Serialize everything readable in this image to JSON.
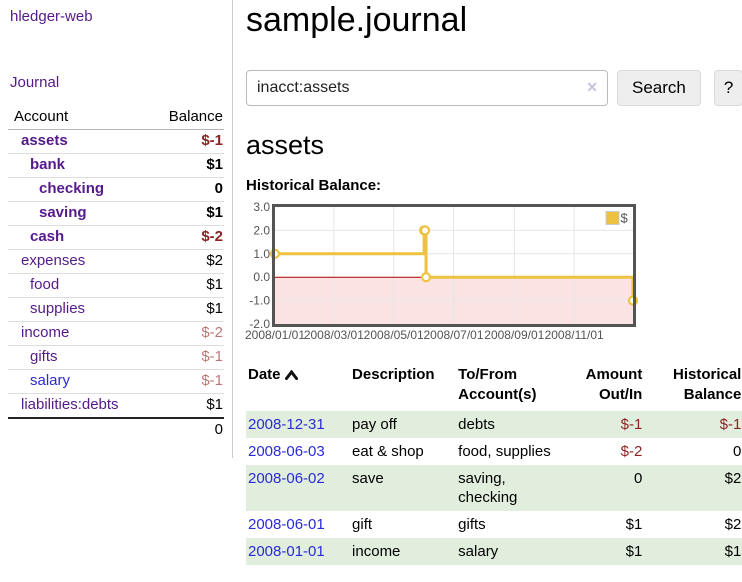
{
  "colors": {
    "purple": "#551a8b",
    "blue": "#2a2ad6",
    "negative": "#8b2323",
    "negative_dim": "#bb7777",
    "row_green": "#e1eedd",
    "series_yellow": "#edc240"
  },
  "sidebar": {
    "app_title": "hledger-web",
    "journal_label": "Journal",
    "accounts_table": {
      "headers": {
        "account": "Account",
        "balance": "Balance"
      },
      "rows": [
        {
          "name": "assets",
          "depth": 1,
          "matched": true,
          "balance": "$-1",
          "balance_class": "neg"
        },
        {
          "name": "bank",
          "depth": 2,
          "matched": true,
          "balance": "$1",
          "balance_class": "pos"
        },
        {
          "name": "checking",
          "depth": 3,
          "matched": true,
          "balance": "0",
          "balance_class": "pos"
        },
        {
          "name": "saving",
          "depth": 3,
          "matched": true,
          "balance": "$1",
          "balance_class": "pos"
        },
        {
          "name": "cash",
          "depth": 2,
          "matched": true,
          "balance": "$-2",
          "balance_class": "neg"
        },
        {
          "name": "expenses",
          "depth": 1,
          "matched": false,
          "balance": "$2",
          "balance_class": "pos"
        },
        {
          "name": "food",
          "depth": 2,
          "matched": false,
          "balance": "$1",
          "balance_class": "pos"
        },
        {
          "name": "supplies",
          "depth": 2,
          "matched": false,
          "balance": "$1",
          "balance_class": "pos"
        },
        {
          "name": "income",
          "depth": 1,
          "matched": false,
          "balance": "$-2",
          "balance_class": "neg-dim"
        },
        {
          "name": "gifts",
          "depth": 2,
          "matched": false,
          "balance": "$-1",
          "balance_class": "neg-dim"
        },
        {
          "name": "salary",
          "depth": 2,
          "matched": false,
          "link": "blue",
          "balance": "$-1",
          "balance_class": "neg-dim"
        },
        {
          "name": "liabilities:debts",
          "depth": 1,
          "matched": false,
          "balance": "$1",
          "balance_class": "pos"
        }
      ],
      "total": "0"
    }
  },
  "main": {
    "title": "sample.journal",
    "search": {
      "value": "inacct:assets",
      "clear_icon": "✕",
      "button_label": "Search",
      "help_label": "?"
    },
    "account_heading": "assets",
    "chart_label": "Historical Balance:"
  },
  "chart_data": {
    "type": "line",
    "step": true,
    "title": "Historical Balance",
    "series": [
      {
        "name": "$",
        "color": "#edc240",
        "points": [
          [
            "2008-01-01",
            1
          ],
          [
            "2008-06-01",
            2
          ],
          [
            "2008-06-02",
            2
          ],
          [
            "2008-06-03",
            0
          ],
          [
            "2008-12-31",
            -1
          ]
        ]
      }
    ],
    "x_range": [
      "2008-01-01",
      "2008-12-31"
    ],
    "x_ticks": [
      "2008/01/01",
      "2008/03/01",
      "2008/05/01",
      "2008/07/01",
      "2008/09/01",
      "2008/11/01"
    ],
    "y_ticks": [
      3,
      2,
      1,
      0,
      -1,
      -2
    ],
    "ylim": [
      -2,
      3
    ],
    "legend_label": "$",
    "legend_position": "top-right",
    "grid": true,
    "grid_color": "#e6e6e6",
    "border_color": "#545454",
    "zero_line_color": "#aa0000",
    "negative_region_color": "#fbe3e3"
  },
  "register": {
    "headers": {
      "date": "Date",
      "description": "Description",
      "accounts": "To/From Account(s)",
      "amount": "Amount Out/In",
      "balance": "Historical Balance"
    },
    "rows": [
      {
        "date": "2008-12-31",
        "description": "pay off",
        "accounts": "debts",
        "amount": "$-1",
        "amount_negative": true,
        "balance": "$-1",
        "balance_negative": true
      },
      {
        "date": "2008-06-03",
        "description": "eat & shop",
        "accounts": "food, supplies",
        "amount": "$-2",
        "amount_negative": true,
        "balance": "0",
        "balance_negative": false
      },
      {
        "date": "2008-06-02",
        "description": "save",
        "accounts": "saving, checking",
        "amount": "0",
        "amount_negative": false,
        "balance": "$2",
        "balance_negative": false
      },
      {
        "date": "2008-06-01",
        "description": "gift",
        "accounts": "gifts",
        "amount": "$1",
        "amount_negative": false,
        "balance": "$2",
        "balance_negative": false
      },
      {
        "date": "2008-01-01",
        "description": "income",
        "accounts": "salary",
        "amount": "$1",
        "amount_negative": false,
        "balance": "$1",
        "balance_negative": false
      }
    ]
  }
}
